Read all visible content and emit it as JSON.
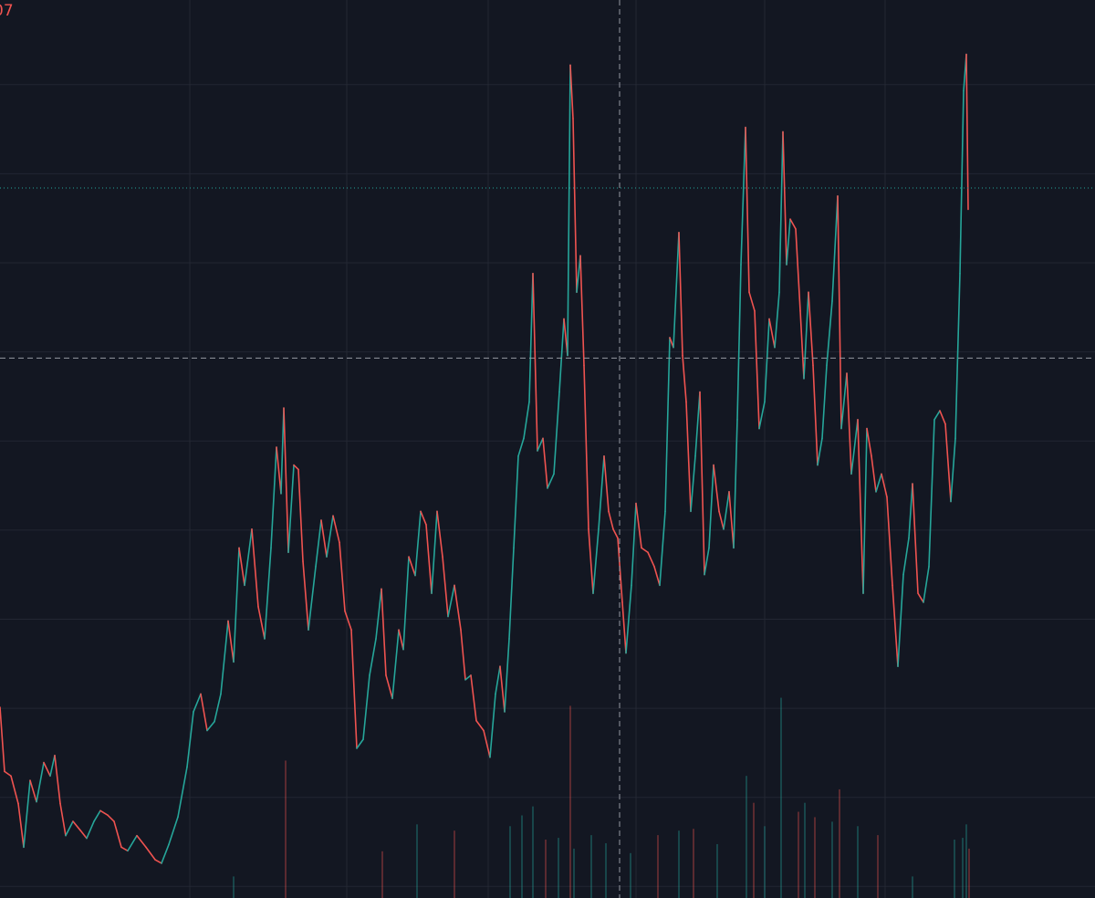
{
  "chart_data": {
    "type": "line",
    "title": "07",
    "title_color": "#ef5350",
    "background": "#131722",
    "grid": true,
    "grid_color": "#232733",
    "up_color": "#26a69a",
    "down_color": "#ef5350",
    "xlim": [
      0,
      1200
    ],
    "ylim": [
      -1.3,
      99.5
    ],
    "xticks": [
      208,
      380,
      535,
      697,
      838,
      970
    ],
    "yticks": [
      0,
      10,
      20,
      30,
      40,
      50,
      60,
      70,
      80,
      90
    ],
    "x": [
      0,
      5,
      12,
      20,
      26,
      33,
      40,
      48,
      55,
      60,
      66,
      72,
      80,
      88,
      95,
      103,
      110,
      118,
      125,
      133,
      140,
      150,
      160,
      170,
      177,
      185,
      195,
      205,
      212,
      220,
      227,
      235,
      242,
      250,
      256,
      262,
      268,
      276,
      283,
      290,
      297,
      303,
      308,
      311,
      316,
      322,
      327,
      332,
      338,
      346,
      352,
      358,
      365,
      372,
      378,
      385,
      391,
      398,
      405,
      412,
      418,
      423,
      430,
      437,
      442,
      448,
      455,
      461,
      467,
      473,
      479,
      485,
      491,
      498,
      505,
      510,
      516,
      522,
      530,
      537,
      543,
      548,
      553,
      558,
      563,
      568,
      574,
      580,
      584,
      589,
      595,
      600,
      607,
      613,
      618,
      622,
      625,
      628,
      632,
      636,
      640,
      645,
      650,
      656,
      662,
      667,
      672,
      677,
      682,
      686,
      692,
      697,
      703,
      710,
      717,
      723,
      729,
      734,
      738,
      744,
      748,
      752,
      757,
      762,
      767,
      772,
      777,
      782,
      788,
      793,
      799,
      804,
      808,
      812,
      817,
      821,
      827,
      832,
      838,
      843,
      849,
      854,
      858,
      862,
      866,
      872,
      877,
      881,
      886,
      891,
      896,
      901,
      906,
      912,
      918,
      922,
      928,
      933,
      940,
      946,
      950,
      955,
      960,
      966,
      972,
      978,
      984,
      990,
      996,
      1000,
      1006,
      1012,
      1018,
      1024,
      1030,
      1036,
      1042,
      1047,
      1052,
      1056,
      1059,
      1061
    ],
    "values": [
      20.1,
      12.9,
      12.4,
      9.3,
      4.4,
      11.9,
      9.5,
      13.9,
      12.4,
      14.7,
      9.3,
      5.7,
      7.3,
      6.3,
      5.4,
      7.3,
      8.5,
      8.0,
      7.3,
      4.4,
      4.0,
      5.7,
      4.4,
      3.0,
      2.6,
      4.7,
      7.8,
      13.4,
      19.6,
      21.6,
      17.5,
      18.5,
      21.6,
      29.8,
      25.2,
      38.0,
      33.8,
      40.1,
      31.4,
      27.8,
      38.0,
      49.3,
      44.1,
      53.7,
      37.5,
      47.3,
      46.8,
      36.5,
      28.8,
      35.9,
      41.1,
      37.0,
      41.6,
      38.6,
      30.9,
      28.8,
      15.5,
      16.5,
      23.7,
      27.8,
      33.4,
      23.7,
      21.1,
      28.8,
      26.6,
      37.0,
      34.9,
      42.1,
      40.6,
      32.9,
      42.1,
      37.0,
      30.3,
      33.8,
      28.8,
      23.2,
      23.7,
      18.6,
      17.5,
      14.5,
      21.6,
      24.7,
      19.6,
      27.8,
      38.0,
      48.3,
      50.3,
      54.4,
      68.8,
      48.9,
      50.3,
      44.7,
      46.3,
      55.5,
      63.7,
      59.6,
      92.2,
      86.2,
      66.7,
      70.8,
      58.5,
      40.1,
      32.9,
      40.1,
      48.3,
      42.1,
      40.1,
      39.1,
      31.9,
      26.2,
      33.8,
      43.0,
      38.0,
      37.5,
      35.9,
      33.8,
      42.1,
      61.6,
      60.5,
      73.4,
      59.6,
      54.4,
      42.1,
      48.3,
      55.5,
      35.0,
      38.0,
      47.3,
      42.1,
      40.1,
      44.3,
      38.0,
      52.4,
      69.8,
      85.2,
      66.7,
      64.6,
      51.4,
      54.4,
      63.7,
      60.5,
      66.7,
      84.7,
      69.8,
      74.9,
      73.8,
      64.6,
      57.0,
      66.7,
      58.5,
      47.3,
      50.3,
      58.5,
      65.7,
      77.5,
      51.4,
      57.6,
      46.3,
      52.4,
      32.9,
      51.4,
      48.3,
      44.3,
      46.3,
      43.7,
      33.8,
      24.7,
      35.0,
      39.1,
      45.2,
      32.9,
      31.9,
      35.9,
      52.4,
      53.4,
      51.9,
      43.2,
      50.3,
      68.8,
      89.3,
      93.4,
      76.0
    ],
    "volume": {
      "y2lim": [
        0,
        100
      ],
      "x": [
        256,
        313,
        419,
        457,
        498,
        559,
        572,
        584,
        598,
        612,
        625,
        629,
        648,
        664,
        691,
        721,
        744,
        760,
        786,
        818,
        826,
        838,
        856,
        875,
        882,
        893,
        912,
        920,
        940,
        962,
        1000,
        1046,
        1055,
        1059,
        1062
      ],
      "values": [
        2.4,
        15.3,
        5.2,
        8.2,
        7.5,
        8.0,
        9.2,
        10.2,
        6.5,
        6.7,
        21.4,
        5.5,
        7.0,
        6.1,
        5.0,
        7.0,
        7.5,
        7.7,
        6.0,
        13.6,
        10.6,
        8.0,
        22.3,
        9.6,
        10.6,
        9.0,
        8.5,
        12.1,
        8.0,
        7.0,
        2.4,
        6.5,
        6.7,
        8.2,
        5.5
      ],
      "up": [
        true,
        false,
        false,
        true,
        false,
        true,
        true,
        true,
        false,
        true,
        false,
        true,
        true,
        true,
        true,
        false,
        true,
        false,
        true,
        true,
        false,
        true,
        true,
        false,
        true,
        false,
        true,
        false,
        true,
        false,
        true,
        true,
        true,
        true,
        false
      ]
    },
    "crosshair": {
      "x": 679,
      "y": 59.3,
      "color": "#9598a1"
    },
    "price_line": {
      "value": 78.4,
      "color": "#26a69a"
    }
  }
}
